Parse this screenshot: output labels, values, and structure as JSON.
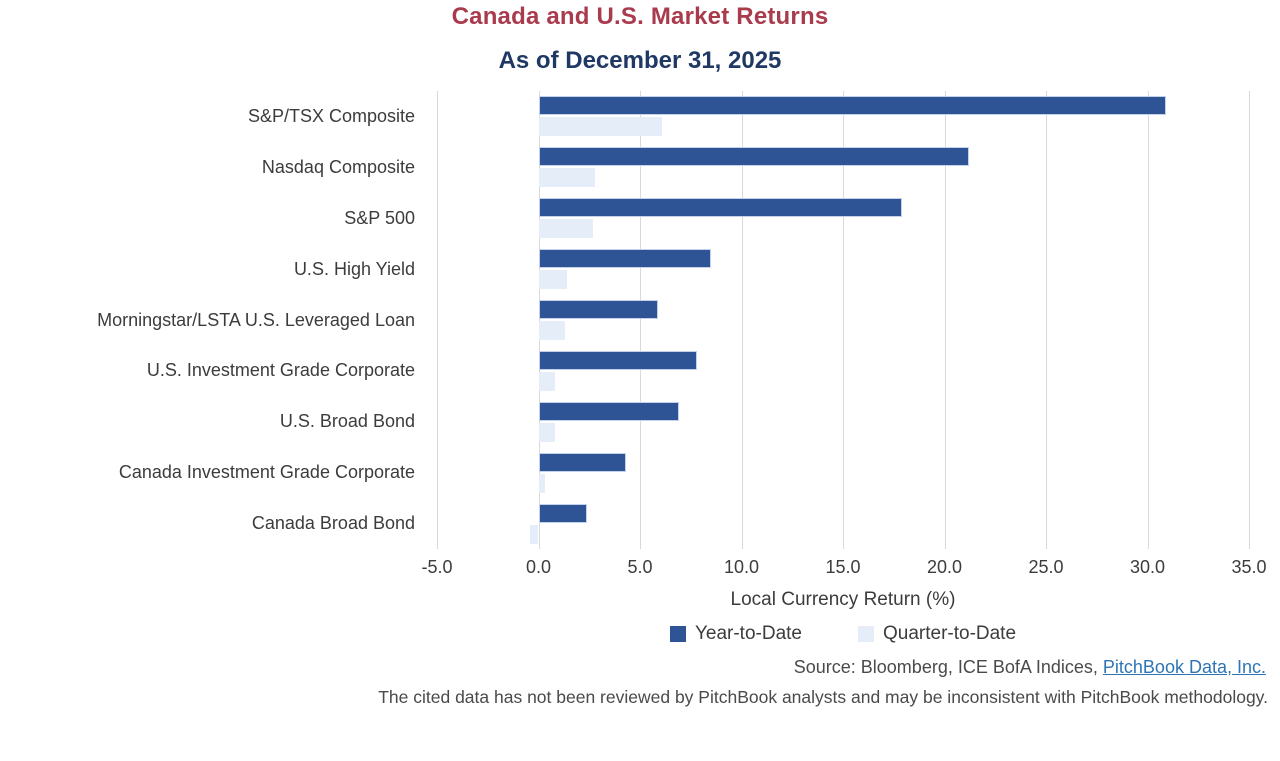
{
  "title": "Canada and U.S. Market Returns",
  "subtitle": "As of December 31, 2025",
  "title_color": "#a93b4d",
  "subtitle_color": "#1f3864",
  "chart_data": {
    "type": "bar",
    "orientation": "horizontal",
    "title": "Canada and U.S. Market Returns",
    "subtitle": "As of December 31, 2025",
    "categories": [
      "S&P/TSX Composite",
      "Nasdaq Composite",
      "S&P 500",
      "U.S. High Yield",
      "Morningstar/LSTA U.S. Leveraged Loan",
      "U.S. Investment Grade Corporate",
      "U.S. Broad Bond",
      "Canada Investment Grade Corporate",
      "Canada Broad Bond"
    ],
    "series": [
      {
        "name": "Year-to-Date",
        "color": "#2e5496",
        "values": [
          30.9,
          21.2,
          17.9,
          8.5,
          5.9,
          7.8,
          6.9,
          4.3,
          2.4
        ]
      },
      {
        "name": "Quarter-to-Date",
        "color": "#e5edf8",
        "values": [
          6.1,
          2.8,
          2.7,
          1.4,
          1.3,
          0.8,
          0.8,
          0.3,
          -0.4
        ]
      }
    ],
    "xlabel": "Local Currency Return (%)",
    "xlim": [
      -5,
      35
    ],
    "xtick_step": 5,
    "xticks": [
      "-5.0",
      "0.0",
      "5.0",
      "10.0",
      "15.0",
      "20.0",
      "25.0",
      "30.0",
      "35.0"
    ],
    "grid": true,
    "gridline_color": "#d9d9d9",
    "legend_position": "bottom"
  },
  "footer": {
    "source_prefix": "Source: Bloomberg, ICE BofA Indices, ",
    "source_link": "PitchBook Data, Inc.",
    "disclaimer": "The cited data has not been reviewed by PitchBook analysts and may be inconsistent with PitchBook methodology."
  }
}
